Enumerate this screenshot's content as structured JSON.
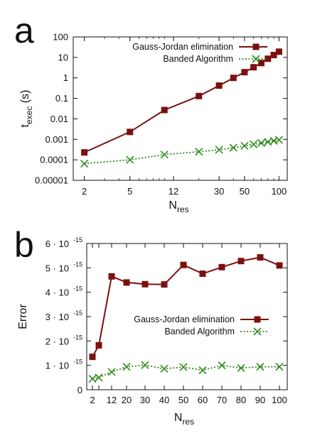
{
  "chart_data": [
    {
      "panel_label": "a",
      "type": "line",
      "title": "",
      "xlabel": "N",
      "xlabel_sub": "res",
      "ylabel": "t",
      "ylabel_sub": "exec",
      "ylabel_suffix": " (s)",
      "xscale": "log",
      "yscale": "log",
      "xlim": [
        1.6,
        118
      ],
      "ylim": [
        1e-05,
        100
      ],
      "xticks": [
        2,
        5,
        12,
        30,
        50,
        100
      ],
      "xtick_labels": [
        "2",
        "5",
        "12",
        "30",
        "50",
        "100"
      ],
      "yticks": [
        1e-05,
        0.0001,
        0.001,
        0.01,
        0.1,
        1,
        10,
        100
      ],
      "ytick_labels": [
        "0.00001",
        "0.0001",
        "0.001",
        "0.01",
        "0.1",
        "1",
        "10",
        "100"
      ],
      "legend_position": "top-right",
      "grid": false,
      "series": [
        {
          "name": "Gauss-Jordan elimination",
          "color": "#7b1010",
          "marker": "square",
          "line": "solid",
          "x": [
            2,
            5,
            10,
            20,
            30,
            40,
            50,
            60,
            70,
            80,
            90,
            100
          ],
          "y": [
            0.00023,
            0.0023,
            0.027,
            0.13,
            0.42,
            1.0,
            1.9,
            3.3,
            5.3,
            8.6,
            13.0,
            19.0
          ]
        },
        {
          "name": "Banded Algorithm",
          "color": "#2f8a1c",
          "marker": "x",
          "line": "dotted",
          "x": [
            2,
            5,
            10,
            20,
            30,
            40,
            50,
            60,
            70,
            80,
            90,
            100
          ],
          "y": [
            6.5e-05,
            0.0001,
            0.00018,
            0.00025,
            0.00031,
            0.00039,
            0.00048,
            0.00057,
            0.00066,
            0.00075,
            0.00084,
            0.00094
          ]
        }
      ]
    },
    {
      "panel_label": "b",
      "type": "line",
      "title": "",
      "xlabel": "N",
      "xlabel_sub": "res",
      "ylabel": "Error",
      "xscale": "categorical",
      "yscale": "linear",
      "categories": [
        "2",
        "4",
        "12",
        "20",
        "30",
        "40",
        "50",
        "60",
        "70",
        "80",
        "90",
        "100"
      ],
      "xtick_labels": [
        "2",
        "12",
        "20",
        "30",
        "40",
        "50",
        "60",
        "70",
        "80",
        "90",
        "100"
      ],
      "ylim": [
        0,
        6e-15
      ],
      "ytick_labels": [
        "0",
        "1 · 10",
        "2 · 10",
        "3 · 10",
        "4 · 10",
        "5 · 10",
        "6 · 10"
      ],
      "ytick_exponent": "-15",
      "legend_position": "center-right",
      "grid": false,
      "series": [
        {
          "name": "Gauss-Jordan elimination",
          "color": "#7b1010",
          "marker": "square",
          "line": "solid",
          "values": [
            1.35e-15,
            1.82e-15,
            4.65e-15,
            4.4e-15,
            4.33e-15,
            4.32e-15,
            5.12e-15,
            4.76e-15,
            5.03e-15,
            5.28e-15,
            5.43e-15,
            5.1e-15
          ]
        },
        {
          "name": "Banded Algorithm",
          "color": "#2f8a1c",
          "marker": "x",
          "line": "dotted",
          "values": [
            4.5e-16,
            5e-16,
            7.3e-16,
            9.4e-16,
            1.01e-15,
            8.6e-16,
            9.3e-16,
            8e-16,
            1e-15,
            8.9e-16,
            9.4e-16,
            9.4e-16
          ]
        }
      ]
    }
  ]
}
